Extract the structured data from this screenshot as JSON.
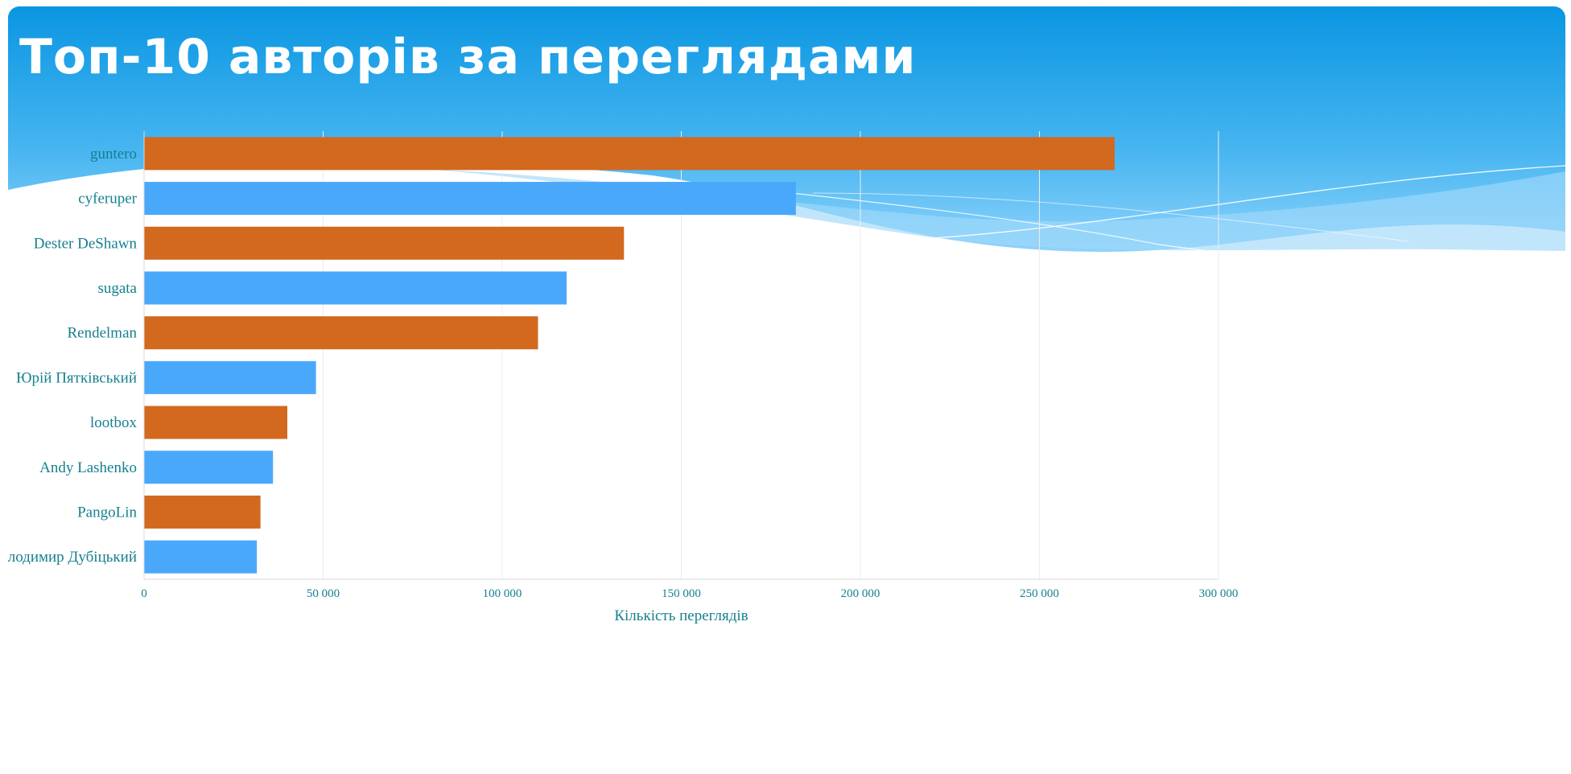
{
  "title": "Топ-10 авторів за переглядами",
  "colors": {
    "header_top": "#0a96e2",
    "header_bottom": "#8ed3fb",
    "bar_orange": "#d2691f",
    "bar_blue": "#4aa8fb",
    "label_teal": "#16808f",
    "grid": "#ececec"
  },
  "chart_data": {
    "type": "bar",
    "orientation": "horizontal",
    "categories": [
      "guntero",
      "cyferuper",
      "Dester DeShawn",
      "sugata",
      "Rendelman",
      "Юрій Пятківський",
      "lootbox",
      "Andy Lashenko",
      "PangoLin",
      "Володимир Дубіцький"
    ],
    "values": [
      271000,
      182000,
      134000,
      118000,
      110000,
      48000,
      40000,
      36000,
      32500,
      31500
    ],
    "xlabel": "Кількість переглядів",
    "ylabel": "",
    "xlim": [
      0,
      300000
    ],
    "ticks": [
      0,
      50000,
      100000,
      150000,
      200000,
      250000,
      300000
    ],
    "tick_labels": [
      "0",
      "50 000",
      "100 000",
      "150 000",
      "200 000",
      "250 000",
      "300 000"
    ],
    "grid": true,
    "legend": "none"
  }
}
